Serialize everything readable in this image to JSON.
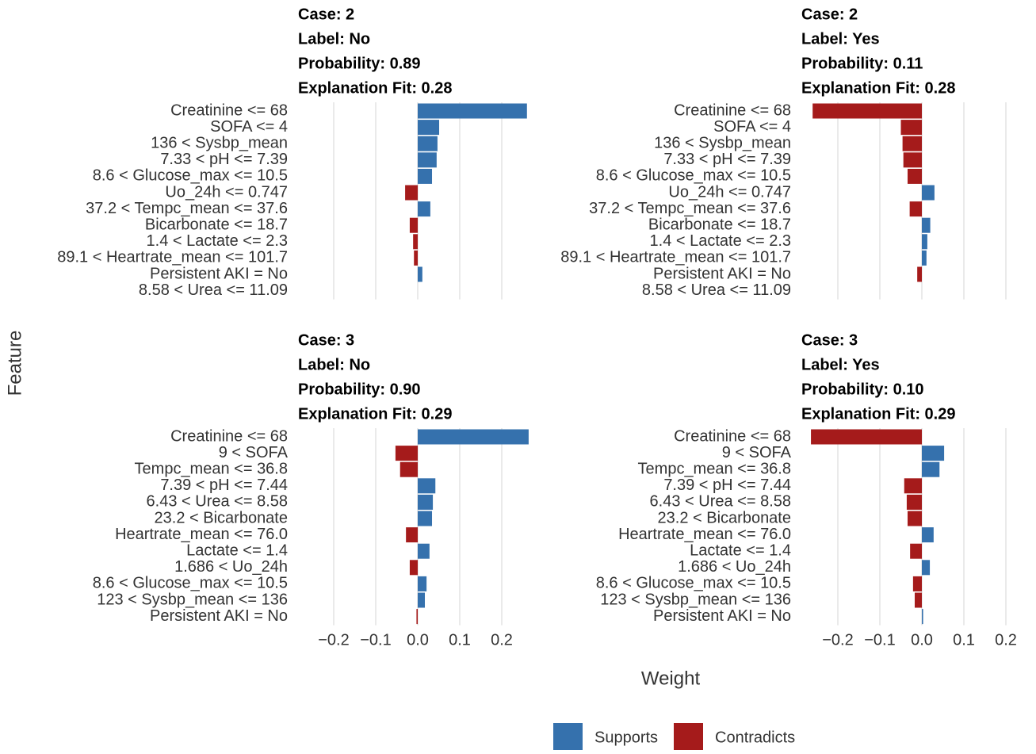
{
  "chart_data": [
    {
      "type": "bar",
      "title": [
        "Case: 2",
        "Label: No",
        "Probability: 0.89",
        "Explanation Fit: 0.28"
      ],
      "categories": [
        "Creatinine <= 68",
        "SOFA <= 4",
        "136 < Sysbp_mean",
        "7.33 < pH <= 7.39",
        "8.6 < Glucose_max <= 10.5",
        "Uo_24h <= 0.747",
        "37.2 < Tempc_mean <= 37.6",
        "Bicarbonate <= 18.7",
        "1.4 < Lactate <= 2.3",
        "89.1 < Heartrate_mean <= 101.7",
        "Persistent AKI = No",
        "8.58 < Urea <= 11.09"
      ],
      "values": [
        0.26,
        0.051,
        0.047,
        0.045,
        0.034,
        -0.03,
        0.03,
        -0.019,
        -0.011,
        -0.009,
        0.011,
        0
      ]
    },
    {
      "type": "bar",
      "title": [
        "Case: 2",
        "Label: Yes",
        "Probability: 0.11",
        "Explanation Fit: 0.28"
      ],
      "categories": [
        "Creatinine <= 68",
        "SOFA <= 4",
        "136 < Sysbp_mean",
        "7.33 < pH <= 7.39",
        "8.6 < Glucose_max <= 10.5",
        "Uo_24h <= 0.747",
        "37.2 < Tempc_mean <= 37.6",
        "Bicarbonate <= 18.7",
        "1.4 < Lactate <= 2.3",
        "89.1 < Heartrate_mean <= 101.7",
        "Persistent AKI = No",
        "8.58 < Urea <= 11.09"
      ],
      "values": [
        -0.26,
        -0.05,
        -0.046,
        -0.044,
        -0.034,
        0.03,
        -0.029,
        0.02,
        0.013,
        0.011,
        -0.011,
        0
      ]
    },
    {
      "type": "bar",
      "title": [
        "Case: 3",
        "Label: No",
        "Probability: 0.90",
        "Explanation Fit: 0.29"
      ],
      "categories": [
        "Creatinine <= 68",
        "9 < SOFA",
        "Tempc_mean <= 36.8",
        "7.39 < pH <= 7.44",
        "6.43 < Urea <= 8.58",
        "23.2 < Bicarbonate",
        "Heartrate_mean <= 76.0",
        "Lactate <= 1.4",
        "1.686 < Uo_24h",
        "8.6 < Glucose_max <= 10.5",
        "123 < Sysbp_mean <= 136",
        "Persistent AKI = No"
      ],
      "values": [
        0.264,
        -0.053,
        -0.042,
        0.042,
        0.036,
        0.034,
        -0.028,
        0.028,
        -0.019,
        0.021,
        0.017,
        -0.003
      ]
    },
    {
      "type": "bar",
      "title": [
        "Case: 3",
        "Label: Yes",
        "Probability: 0.10",
        "Explanation Fit: 0.29"
      ],
      "categories": [
        "Creatinine <= 68",
        "9 < SOFA",
        "Tempc_mean <= 36.8",
        "7.39 < pH <= 7.44",
        "6.43 < Urea <= 8.58",
        "23.2 < Bicarbonate",
        "Heartrate_mean <= 76.0",
        "Lactate <= 1.4",
        "1.686 < Uo_24h",
        "8.6 < Glucose_max <= 10.5",
        "123 < Sysbp_mean <= 136",
        "Persistent AKI = No"
      ],
      "values": [
        -0.264,
        0.053,
        0.042,
        -0.042,
        -0.036,
        -0.034,
        0.028,
        -0.028,
        0.019,
        -0.021,
        -0.017,
        0.003
      ]
    }
  ],
  "shared": {
    "xlim": [
      -0.25,
      0.26
    ],
    "xticks": [
      {
        "value": -0.2,
        "label": "−0.2"
      },
      {
        "value": -0.1,
        "label": "−0.1"
      },
      {
        "value": 0,
        "label": "0.0"
      },
      0.1,
      0.2
    ],
    "xlabel": "Weight",
    "ylabel": "Feature",
    "legend": [
      {
        "name": "Supports",
        "color": "#3571ad"
      },
      {
        "name": "Contradicts",
        "color": "#a51b1b"
      }
    ]
  }
}
